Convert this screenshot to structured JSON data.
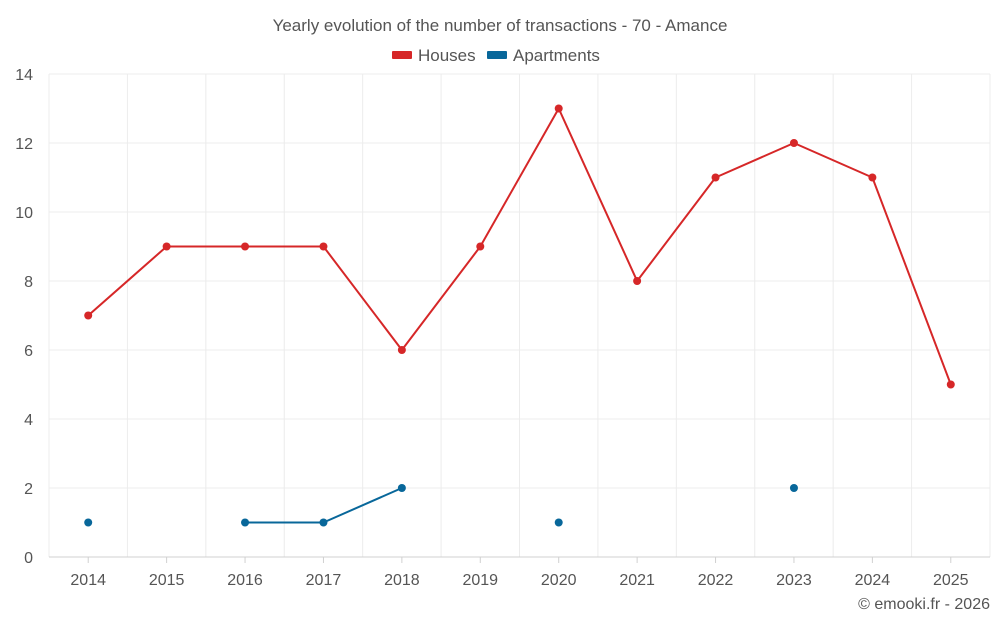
{
  "chart_data": {
    "type": "line",
    "title": "Yearly evolution of the number of transactions - 70 - Amance",
    "categories": [
      "2014",
      "2015",
      "2016",
      "2017",
      "2018",
      "2019",
      "2020",
      "2021",
      "2022",
      "2023",
      "2024",
      "2025"
    ],
    "series": [
      {
        "name": "Houses",
        "color": "#d62728",
        "values": [
          7,
          9,
          9,
          9,
          6,
          9,
          13,
          8,
          11,
          12,
          11,
          5
        ]
      },
      {
        "name": "Apartments",
        "color": "#08679a",
        "values": [
          1,
          null,
          1,
          1,
          2,
          null,
          1,
          null,
          null,
          2,
          null,
          null
        ]
      }
    ],
    "ylim": [
      0,
      14
    ],
    "yticks": [
      0,
      2,
      4,
      6,
      8,
      10,
      12,
      14
    ],
    "grid": true,
    "legend_position": "top-center"
  },
  "credit": "© emooki.fr - 2026"
}
